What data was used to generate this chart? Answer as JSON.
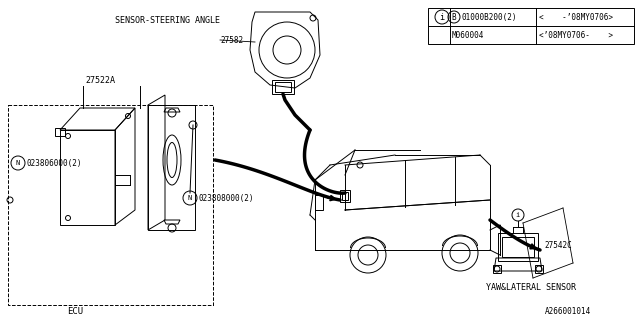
{
  "bg_color": "#ffffff",
  "line_color": "#000000",
  "fig_width": 6.4,
  "fig_height": 3.2,
  "dpi": 100,
  "labels": {
    "sensor_steering": "SENSOR-STEERING ANGLE",
    "sensor_part": "27582",
    "ecu_label": "ECU",
    "ecu_part": "27522A",
    "bolt1": "023806000(2)",
    "bolt2": "023808000(2)",
    "yaw_label": "YAW&LATERAL SENSOR",
    "yaw_part": "27542C",
    "diagram_id": "A266001014",
    "table_r1c1": "01000B200(2)",
    "table_r1c2": "<    -’08MY0706>",
    "table_r2c1": "M060004",
    "table_r2c2": "<’08MY0706-    >"
  }
}
